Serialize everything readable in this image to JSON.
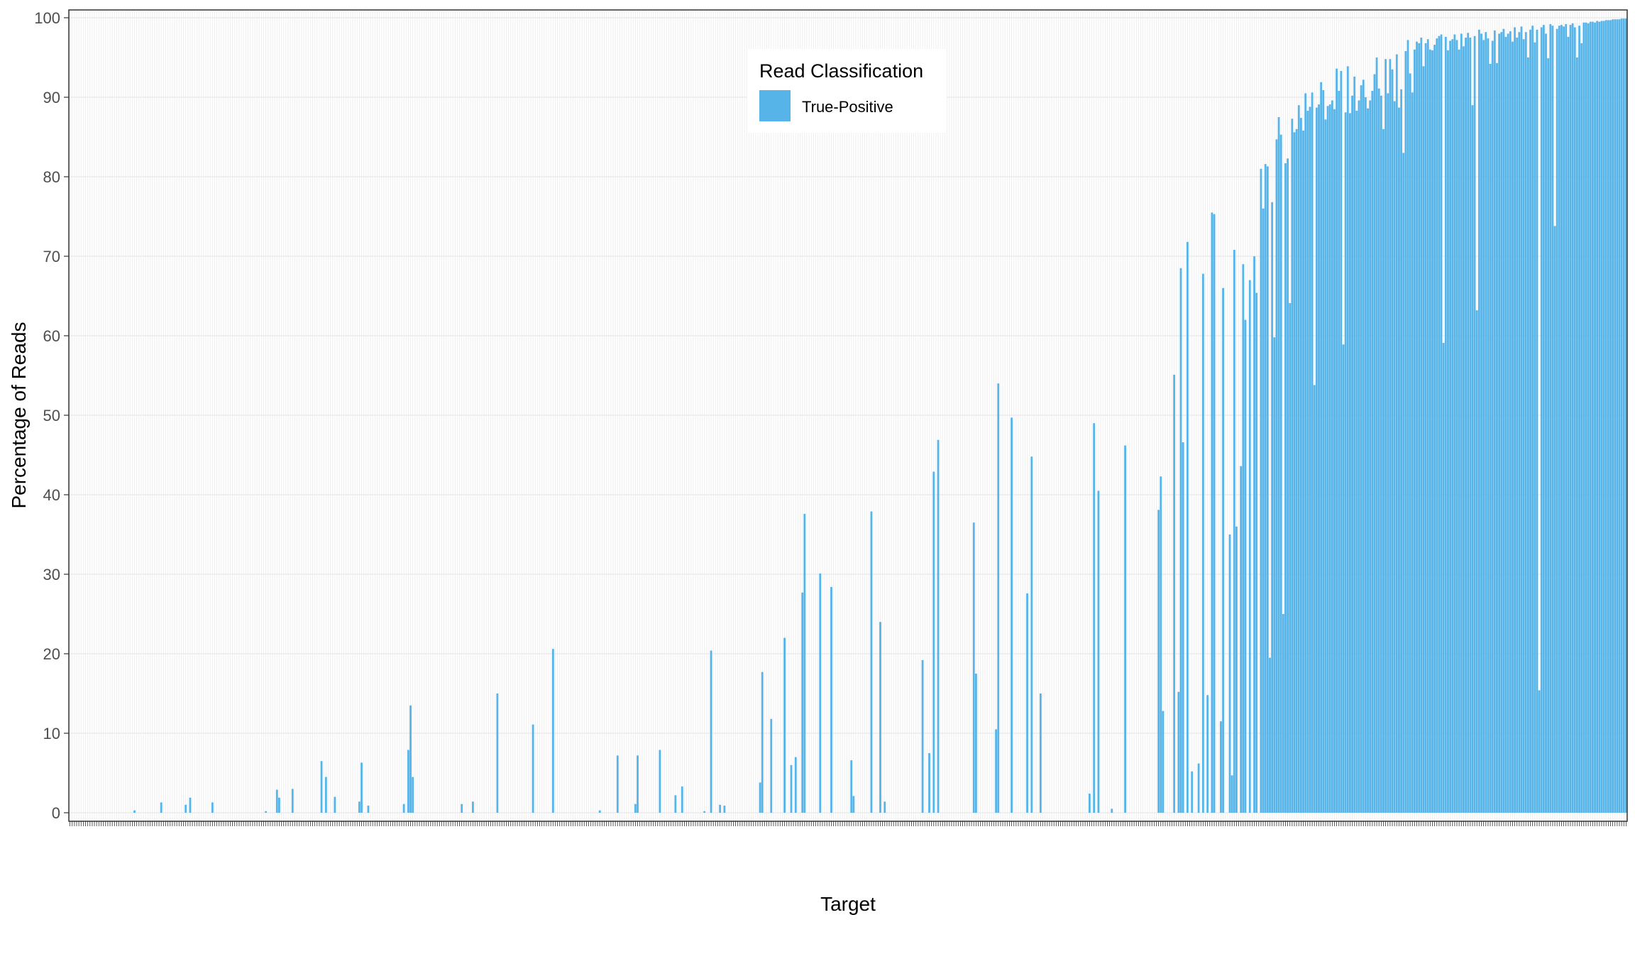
{
  "chart_data": {
    "type": "bar",
    "xlabel": "Target",
    "ylabel": "Percentage of Reads",
    "ylim": [
      0,
      100
    ],
    "yticks": [
      0,
      10,
      20,
      30,
      40,
      50,
      60,
      70,
      80,
      90,
      100
    ],
    "grid": true,
    "n_categories": 700,
    "legend": {
      "title": "Read Classification",
      "position": "top-center"
    },
    "series": [
      {
        "name": "True-Positive",
        "color": "#56B4E9",
        "points": [
          [
            29,
            0.3
          ],
          [
            41,
            1.3
          ],
          [
            52,
            1.0
          ],
          [
            54,
            1.9
          ],
          [
            64,
            1.3
          ],
          [
            88,
            0.2
          ],
          [
            93,
            2.9
          ],
          [
            94,
            1.9
          ],
          [
            100,
            3.0
          ],
          [
            113,
            6.5
          ],
          [
            115,
            4.5
          ],
          [
            119,
            2.0
          ],
          [
            130,
            1.4
          ],
          [
            131,
            6.3
          ],
          [
            134,
            0.9
          ],
          [
            150,
            1.1
          ],
          [
            152,
            7.9
          ],
          [
            153,
            13.5
          ],
          [
            154,
            4.5
          ],
          [
            176,
            1.1
          ],
          [
            181,
            1.4
          ],
          [
            192,
            15.0
          ],
          [
            208,
            11.1
          ],
          [
            217,
            20.6
          ],
          [
            238,
            0.3
          ],
          [
            246,
            7.2
          ],
          [
            254,
            1.1
          ],
          [
            255,
            7.2
          ],
          [
            265,
            7.9
          ],
          [
            272,
            2.2
          ],
          [
            275,
            3.3
          ],
          [
            285,
            0.2
          ],
          [
            288,
            20.4
          ],
          [
            292,
            1.0
          ],
          [
            294,
            0.9
          ],
          [
            310,
            3.8
          ],
          [
            311,
            17.7
          ],
          [
            315,
            11.8
          ],
          [
            321,
            22.0
          ],
          [
            324,
            6.0
          ],
          [
            326,
            7.0
          ],
          [
            329,
            27.7
          ],
          [
            330,
            37.6
          ],
          [
            337,
            30.1
          ],
          [
            342,
            28.4
          ],
          [
            351,
            6.6
          ],
          [
            352,
            2.1
          ],
          [
            360,
            37.9
          ],
          [
            364,
            24.0
          ],
          [
            366,
            1.4
          ],
          [
            383,
            19.2
          ],
          [
            386,
            7.5
          ],
          [
            388,
            42.9
          ],
          [
            390,
            46.9
          ],
          [
            406,
            36.5
          ],
          [
            407,
            17.5
          ],
          [
            416,
            10.5
          ],
          [
            417,
            54.0
          ],
          [
            423,
            49.7
          ],
          [
            430,
            27.6
          ],
          [
            432,
            44.8
          ],
          [
            436,
            15.0
          ],
          [
            458,
            2.4
          ],
          [
            460,
            49.0
          ],
          [
            462,
            40.5
          ],
          [
            468,
            0.5
          ],
          [
            474,
            46.2
          ],
          [
            489,
            38.1
          ],
          [
            490,
            42.3
          ],
          [
            491,
            12.8
          ],
          [
            496,
            55.1
          ],
          [
            498,
            15.2
          ],
          [
            499,
            68.5
          ],
          [
            500,
            46.6
          ],
          [
            502,
            71.8
          ],
          [
            504,
            5.2
          ],
          [
            507,
            6.2
          ],
          [
            509,
            67.8
          ],
          [
            511,
            14.8
          ],
          [
            513,
            75.5
          ],
          [
            514,
            75.3
          ],
          [
            517,
            11.5
          ],
          [
            518,
            66.0
          ],
          [
            521,
            35.0
          ],
          [
            522,
            4.7
          ],
          [
            523,
            70.8
          ],
          [
            524,
            36.0
          ],
          [
            526,
            43.6
          ],
          [
            527,
            69.0
          ],
          [
            528,
            62.0
          ],
          [
            530,
            67.0
          ],
          [
            532,
            70.0
          ],
          [
            533,
            65.4
          ],
          [
            535,
            81.0
          ],
          [
            536,
            76.0
          ],
          [
            537,
            81.6
          ],
          [
            538,
            81.3
          ],
          [
            539,
            19.5
          ],
          [
            540,
            76.8
          ],
          [
            541,
            59.8
          ],
          [
            542,
            84.7
          ],
          [
            543,
            87.5
          ],
          [
            544,
            85.3
          ],
          [
            545,
            25.0
          ],
          [
            546,
            81.7
          ],
          [
            547,
            82.3
          ],
          [
            548,
            64.1
          ],
          [
            549,
            87.3
          ],
          [
            550,
            85.6
          ],
          [
            551,
            86.0
          ],
          [
            552,
            89.0
          ],
          [
            553,
            87.4
          ],
          [
            554,
            85.8
          ],
          [
            555,
            90.5
          ],
          [
            556,
            88.3
          ],
          [
            557,
            88.8
          ],
          [
            558,
            90.6
          ],
          [
            559,
            53.8
          ],
          [
            560,
            88.7
          ],
          [
            561,
            89.1
          ],
          [
            562,
            91.9
          ],
          [
            563,
            90.9
          ],
          [
            564,
            87.2
          ],
          [
            565,
            88.9
          ],
          [
            566,
            89.1
          ],
          [
            567,
            89.6
          ],
          [
            568,
            88.5
          ],
          [
            569,
            93.6
          ],
          [
            570,
            90.8
          ],
          [
            571,
            93.3
          ],
          [
            572,
            58.9
          ],
          [
            573,
            88.1
          ],
          [
            574,
            93.9
          ],
          [
            575,
            88.0
          ],
          [
            576,
            90.2
          ],
          [
            577,
            92.6
          ],
          [
            578,
            88.3
          ],
          [
            579,
            89.6
          ],
          [
            580,
            91.5
          ],
          [
            581,
            92.2
          ],
          [
            582,
            90.0
          ],
          [
            583,
            88.6
          ],
          [
            584,
            89.6
          ],
          [
            585,
            90.8
          ],
          [
            586,
            92.9
          ],
          [
            587,
            95.0
          ],
          [
            588,
            91.1
          ],
          [
            589,
            90.2
          ],
          [
            590,
            86.0
          ],
          [
            591,
            94.8
          ],
          [
            592,
            90.5
          ],
          [
            593,
            94.8
          ],
          [
            594,
            93.5
          ],
          [
            595,
            89.5
          ],
          [
            596,
            95.4
          ],
          [
            597,
            88.7
          ],
          [
            598,
            91.0
          ],
          [
            599,
            83.0
          ],
          [
            600,
            95.8
          ],
          [
            601,
            97.2
          ],
          [
            602,
            93.0
          ],
          [
            603,
            90.6
          ],
          [
            604,
            96.0
          ],
          [
            605,
            97.0
          ],
          [
            606,
            96.8
          ],
          [
            607,
            97.5
          ],
          [
            608,
            93.9
          ],
          [
            609,
            96.8
          ],
          [
            610,
            97.3
          ],
          [
            611,
            96.0
          ],
          [
            612,
            95.9
          ],
          [
            613,
            96.6
          ],
          [
            614,
            97.4
          ],
          [
            615,
            97.7
          ],
          [
            616,
            97.9
          ],
          [
            617,
            59.1
          ],
          [
            618,
            97.6
          ],
          [
            619,
            95.9
          ],
          [
            620,
            97.1
          ],
          [
            621,
            97.3
          ],
          [
            622,
            97.9
          ],
          [
            623,
            97.2
          ],
          [
            624,
            96.0
          ],
          [
            625,
            98.0
          ],
          [
            626,
            96.4
          ],
          [
            627,
            97.5
          ],
          [
            628,
            98.1
          ],
          [
            629,
            97.5
          ],
          [
            630,
            89.0
          ],
          [
            631,
            97.7
          ],
          [
            632,
            63.2
          ],
          [
            633,
            98.5
          ],
          [
            634,
            98.0
          ],
          [
            635,
            97.2
          ],
          [
            636,
            98.2
          ],
          [
            637,
            97.4
          ],
          [
            638,
            94.2
          ],
          [
            639,
            97.1
          ],
          [
            640,
            98.4
          ],
          [
            641,
            94.3
          ],
          [
            642,
            98.0
          ],
          [
            643,
            98.2
          ],
          [
            644,
            98.6
          ],
          [
            645,
            97.6
          ],
          [
            646,
            98.0
          ],
          [
            647,
            98.3
          ],
          [
            648,
            97.0
          ],
          [
            649,
            98.8
          ],
          [
            650,
            97.5
          ],
          [
            651,
            98.2
          ],
          [
            652,
            98.9
          ],
          [
            653,
            97.3
          ],
          [
            654,
            98.2
          ],
          [
            655,
            95.0
          ],
          [
            656,
            98.5
          ],
          [
            657,
            99.0
          ],
          [
            658,
            96.9
          ],
          [
            659,
            98.5
          ],
          [
            660,
            15.4
          ],
          [
            661,
            98.8
          ],
          [
            662,
            99.1
          ],
          [
            663,
            98.0
          ],
          [
            664,
            94.9
          ],
          [
            665,
            99.2
          ],
          [
            666,
            99.0
          ],
          [
            667,
            73.8
          ],
          [
            668,
            98.6
          ],
          [
            669,
            99.0
          ],
          [
            670,
            99.1
          ],
          [
            671,
            98.9
          ],
          [
            672,
            99.2
          ],
          [
            673,
            97.6
          ],
          [
            674,
            99.1
          ],
          [
            675,
            99.3
          ],
          [
            676,
            98.8
          ],
          [
            677,
            95.0
          ],
          [
            678,
            99.0
          ],
          [
            679,
            96.8
          ],
          [
            680,
            99.4
          ],
          [
            681,
            99.4
          ],
          [
            682,
            99.3
          ],
          [
            683,
            99.5
          ],
          [
            684,
            99.5
          ],
          [
            685,
            99.4
          ],
          [
            686,
            99.6
          ],
          [
            687,
            99.5
          ],
          [
            688,
            99.6
          ],
          [
            689,
            99.6
          ],
          [
            690,
            99.7
          ],
          [
            691,
            99.7
          ],
          [
            692,
            99.7
          ],
          [
            693,
            99.8
          ],
          [
            694,
            99.8
          ],
          [
            695,
            99.8
          ],
          [
            696,
            99.8
          ],
          [
            697,
            99.9
          ],
          [
            698,
            99.9
          ],
          [
            699,
            99.9
          ]
        ]
      }
    ]
  }
}
